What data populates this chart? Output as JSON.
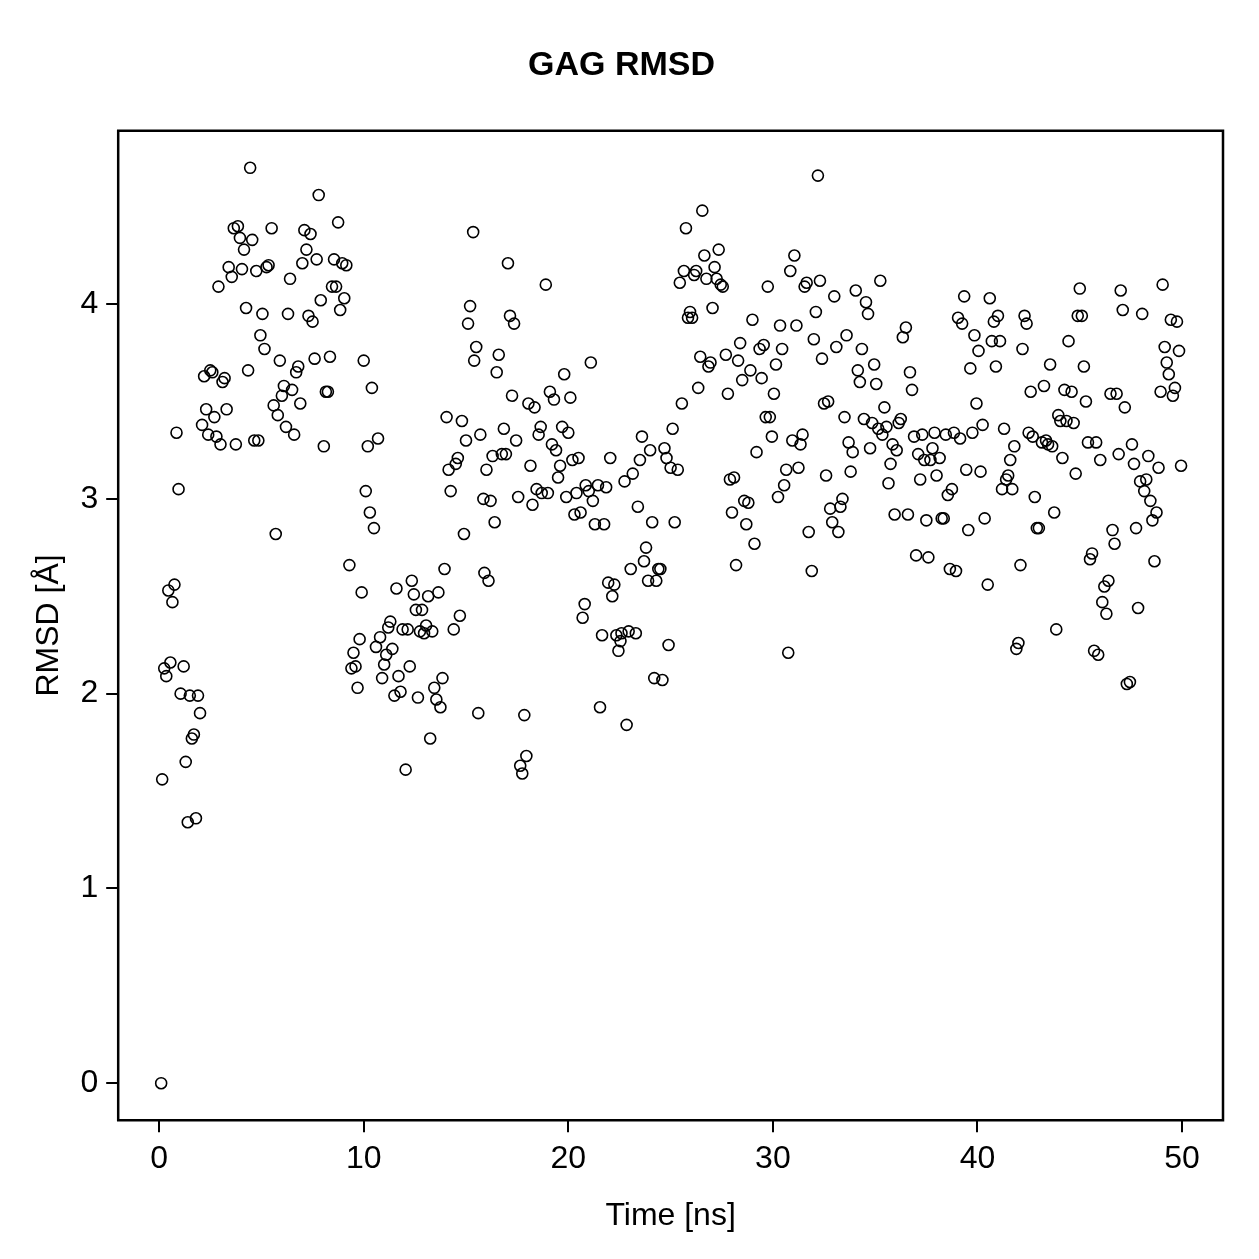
{
  "chart_data": {
    "type": "scatter",
    "title": "GAG RMSD",
    "xlabel": "Time [ns]",
    "ylabel": "RMSD [Å]",
    "marker": "circle",
    "grid": false,
    "legend": false,
    "xlim": [
      -2,
      52
    ],
    "xticks": [
      0,
      10,
      20,
      30,
      40,
      50
    ],
    "ylim": [
      -0.19,
      4.89
    ],
    "yticks": [
      0,
      1,
      2,
      3,
      4
    ],
    "series": [
      {
        "color": "#000000",
        "x": [
          0.1,
          0.15,
          0.25,
          0.35,
          0.45,
          0.55,
          0.65,
          0.75,
          0.85,
          0.95,
          1.05,
          1.2,
          1.3,
          1.4,
          1.5,
          1.6,
          1.7,
          1.8,
          1.9,
          2.0,
          2.1,
          2.2,
          2.3,
          2.4,
          2.5,
          2.6,
          2.7,
          2.8,
          2.9,
          3.0,
          3.1,
          3.2,
          3.3,
          3.4,
          3.55,
          3.65,
          3.75,
          3.85,
          3.95,
          4.05,
          4.15,
          4.25,
          4.35,
          4.45,
          4.55,
          4.65,
          4.75,
          4.85,
          4.95,
          5.05,
          5.15,
          5.25,
          5.35,
          5.5,
          5.6,
          5.7,
          5.8,
          5.9,
          6.0,
          6.1,
          6.2,
          6.3,
          6.4,
          6.5,
          6.6,
          6.7,
          6.8,
          6.9,
          7.0,
          7.1,
          7.2,
          7.3,
          7.4,
          7.5,
          7.6,
          7.7,
          7.8,
          7.9,
          8.05,
          8.15,
          8.25,
          8.35,
          8.45,
          8.55,
          8.65,
          8.75,
          8.85,
          8.95,
          9.05,
          9.15,
          9.3,
          9.4,
          9.5,
          9.6,
          9.7,
          9.8,
          9.9,
          10.0,
          10.1,
          10.2,
          10.3,
          10.4,
          10.5,
          10.6,
          10.7,
          10.8,
          10.9,
          11.0,
          11.1,
          11.2,
          11.3,
          11.4,
          11.5,
          11.6,
          11.7,
          11.8,
          11.9,
          12.05,
          12.15,
          12.25,
          12.35,
          12.45,
          12.55,
          12.65,
          12.75,
          12.85,
          12.95,
          13.05,
          13.15,
          13.25,
          13.35,
          13.45,
          13.55,
          13.65,
          13.75,
          13.85,
          13.95,
          14.05,
          14.15,
          14.25,
          14.4,
          14.5,
          14.6,
          14.7,
          14.8,
          14.9,
          15.0,
          15.1,
          15.2,
          15.35,
          15.4,
          15.5,
          15.6,
          15.7,
          15.85,
          15.9,
          16.0,
          16.1,
          16.2,
          16.3,
          16.4,
          16.5,
          16.6,
          16.75,
          16.85,
          16.95,
          17.05,
          17.15,
          17.25,
          17.35,
          17.45,
          17.55,
          17.65,
          17.75,
          17.85,
          17.95,
          18.05,
          18.15,
          18.25,
          18.35,
          18.45,
          18.55,
          18.65,
          18.7,
          18.9,
          19.0,
          19.1,
          19.2,
          19.3,
          19.4,
          19.5,
          19.6,
          19.7,
          19.8,
          19.9,
          20.0,
          20.1,
          20.2,
          20.3,
          20.4,
          20.5,
          20.6,
          20.7,
          20.8,
          20.85,
          21.0,
          21.1,
          21.2,
          21.3,
          21.45,
          21.55,
          21.65,
          21.75,
          21.85,
          21.95,
          22.05,
          22.15,
          22.25,
          22.35,
          22.45,
          22.55,
          22.6,
          22.75,
          22.85,
          22.95,
          23.05,
          23.15,
          23.3,
          23.4,
          23.5,
          23.6,
          23.7,
          23.8,
          23.9,
          24.0,
          24.1,
          24.2,
          24.3,
          24.4,
          24.5,
          24.6,
          24.7,
          24.8,
          24.9,
          25.0,
          25.1,
          25.2,
          25.35,
          25.45,
          25.55,
          25.65,
          25.75,
          25.85,
          25.95,
          26.05,
          26.15,
          26.25,
          26.35,
          26.45,
          26.55,
          26.65,
          26.75,
          26.85,
          26.95,
          27.05,
          27.15,
          27.25,
          27.35,
          27.45,
          27.55,
          27.7,
          27.8,
          27.9,
          28.0,
          28.1,
          28.2,
          28.3,
          28.4,
          28.5,
          28.6,
          28.7,
          28.8,
          28.9,
          29.0,
          29.1,
          29.2,
          29.35,
          29.45,
          29.55,
          29.65,
          29.75,
          29.85,
          29.95,
          30.05,
          30.15,
          30.25,
          30.35,
          30.45,
          30.55,
          30.65,
          30.75,
          30.85,
          30.95,
          31.05,
          31.15,
          31.25,
          31.35,
          31.45,
          31.55,
          31.65,
          31.75,
          31.9,
          32.0,
          32.1,
          32.2,
          32.3,
          32.4,
          32.5,
          32.6,
          32.7,
          32.8,
          32.9,
          33.0,
          33.1,
          33.2,
          33.3,
          33.4,
          33.5,
          33.6,
          33.7,
          33.8,
          33.9,
          34.05,
          34.15,
          34.25,
          34.35,
          34.45,
          34.55,
          34.65,
          34.75,
          34.85,
          34.95,
          35.05,
          35.15,
          35.25,
          35.35,
          35.45,
          35.55,
          35.65,
          35.75,
          35.85,
          35.95,
          36.05,
          36.15,
          36.25,
          36.35,
          36.5,
          36.6,
          36.7,
          36.8,
          36.9,
          37.0,
          37.1,
          37.2,
          37.3,
          37.4,
          37.5,
          37.6,
          37.7,
          37.8,
          37.9,
          38.0,
          38.15,
          38.25,
          38.35,
          38.45,
          38.55,
          38.65,
          38.75,
          38.85,
          38.95,
          39.05,
          39.15,
          39.25,
          39.35,
          39.45,
          39.55,
          39.65,
          39.75,
          39.85,
          39.95,
          40.05,
          40.15,
          40.25,
          40.35,
          40.5,
          40.6,
          40.7,
          40.8,
          40.9,
          41.0,
          41.1,
          41.2,
          41.3,
          41.4,
          41.5,
          41.6,
          41.7,
          41.8,
          41.9,
          42.0,
          42.1,
          42.2,
          42.3,
          42.4,
          42.5,
          42.6,
          42.7,
          42.8,
          42.9,
          43.0,
          43.15,
          43.25,
          43.35,
          43.45,
          43.55,
          43.65,
          43.75,
          43.85,
          43.95,
          44.05,
          44.15,
          44.25,
          44.35,
          44.45,
          44.6,
          44.7,
          44.8,
          44.9,
          45.0,
          45.1,
          45.2,
          45.3,
          45.4,
          45.5,
          45.6,
          45.7,
          45.8,
          45.9,
          46.0,
          46.1,
          46.2,
          46.3,
          46.4,
          46.5,
          46.6,
          46.7,
          46.8,
          46.9,
          47.0,
          47.1,
          47.2,
          47.3,
          47.45,
          47.55,
          47.65,
          47.75,
          47.85,
          47.95,
          48.05,
          48.15,
          48.25,
          48.35,
          48.45,
          48.55,
          48.65,
          48.75,
          48.85,
          48.95,
          49.05,
          49.15,
          49.25,
          49.35,
          49.45,
          49.55,
          49.65,
          49.75,
          49.85,
          49.95
        ],
        "values": [
          0.0,
          1.56,
          2.13,
          2.09,
          2.53,
          2.16,
          2.47,
          2.56,
          3.34,
          3.05,
          2.0,
          2.14,
          1.65,
          1.34,
          1.99,
          1.77,
          1.79,
          1.36,
          1.99,
          1.9,
          3.38,
          3.63,
          3.46,
          3.33,
          3.66,
          3.65,
          3.42,
          3.32,
          4.09,
          3.28,
          3.6,
          3.62,
          3.46,
          4.19,
          4.14,
          4.39,
          3.28,
          4.4,
          4.34,
          4.18,
          4.28,
          3.98,
          3.66,
          4.7,
          4.33,
          3.3,
          4.17,
          3.3,
          3.84,
          3.95,
          3.77,
          4.19,
          4.2,
          4.39,
          3.48,
          2.82,
          3.43,
          3.71,
          3.53,
          3.58,
          3.37,
          3.95,
          4.13,
          3.56,
          3.33,
          3.65,
          3.68,
          3.49,
          4.21,
          4.38,
          4.28,
          3.94,
          4.36,
          3.91,
          3.72,
          4.23,
          4.56,
          4.02,
          3.27,
          3.55,
          3.55,
          3.73,
          4.09,
          4.23,
          4.09,
          4.42,
          3.97,
          4.21,
          4.03,
          4.2,
          2.66,
          2.13,
          2.21,
          2.14,
          2.03,
          2.28,
          2.52,
          3.71,
          3.04,
          3.27,
          2.93,
          3.57,
          2.85,
          2.24,
          3.31,
          2.29,
          2.08,
          2.15,
          2.2,
          2.34,
          2.37,
          2.23,
          1.99,
          2.54,
          2.09,
          2.01,
          2.33,
          1.61,
          2.33,
          2.14,
          2.58,
          2.51,
          2.43,
          1.98,
          2.32,
          2.43,
          2.31,
          2.35,
          2.5,
          1.77,
          2.32,
          2.03,
          1.97,
          2.52,
          1.93,
          2.08,
          2.64,
          3.42,
          3.15,
          3.04,
          2.33,
          3.18,
          3.21,
          2.4,
          3.4,
          2.82,
          3.3,
          3.9,
          3.99,
          4.37,
          3.71,
          3.78,
          1.9,
          3.33,
          3.0,
          2.62,
          3.15,
          2.58,
          2.99,
          3.22,
          2.88,
          3.65,
          3.74,
          3.23,
          3.36,
          3.23,
          4.21,
          3.94,
          3.53,
          3.9,
          3.3,
          3.01,
          1.63,
          1.59,
          1.89,
          1.68,
          3.49,
          3.17,
          2.97,
          3.47,
          3.05,
          3.33,
          3.37,
          3.03,
          4.1,
          3.03,
          3.55,
          3.28,
          3.51,
          3.25,
          3.11,
          3.17,
          3.37,
          3.64,
          3.01,
          3.34,
          3.52,
          3.2,
          2.92,
          3.03,
          3.21,
          2.93,
          2.39,
          2.46,
          3.07,
          3.04,
          3.7,
          2.99,
          2.87,
          3.07,
          1.93,
          2.3,
          2.87,
          3.06,
          2.57,
          3.21,
          2.5,
          2.56,
          2.3,
          2.22,
          2.27,
          2.31,
          3.09,
          1.84,
          2.32,
          2.64,
          3.13,
          2.31,
          2.96,
          3.2,
          3.32,
          2.68,
          2.75,
          2.58,
          3.25,
          2.88,
          2.08,
          2.58,
          2.64,
          2.64,
          2.07,
          3.26,
          3.21,
          2.25,
          3.16,
          3.36,
          2.88,
          3.15,
          4.11,
          3.49,
          4.17,
          4.39,
          3.93,
          3.96,
          3.93,
          4.15,
          4.17,
          3.57,
          3.73,
          4.48,
          4.25,
          4.13,
          3.68,
          3.7,
          3.98,
          4.19,
          4.13,
          4.28,
          4.1,
          4.09,
          3.74,
          3.54,
          3.1,
          2.93,
          3.11,
          2.66,
          3.71,
          3.8,
          3.61,
          2.99,
          2.87,
          2.98,
          3.66,
          3.92,
          2.77,
          3.24,
          3.77,
          3.62,
          3.79,
          3.42,
          4.09,
          3.42,
          3.32,
          3.54,
          3.69,
          3.01,
          3.89,
          3.77,
          3.07,
          3.15,
          2.21,
          4.17,
          3.3,
          4.25,
          3.89,
          3.16,
          3.28,
          3.33,
          4.09,
          4.11,
          2.83,
          2.63,
          3.82,
          3.96,
          4.66,
          4.12,
          3.72,
          3.49,
          3.12,
          3.5,
          2.95,
          2.88,
          4.04,
          3.78,
          2.83,
          2.96,
          3.0,
          3.42,
          3.84,
          3.29,
          3.14,
          3.24,
          4.07,
          3.66,
          3.6,
          3.77,
          3.41,
          4.01,
          3.95,
          3.26,
          3.39,
          3.69,
          3.59,
          3.36,
          4.12,
          3.33,
          3.47,
          3.37,
          3.08,
          3.18,
          3.28,
          2.92,
          3.25,
          3.39,
          3.41,
          3.83,
          3.88,
          2.92,
          3.65,
          3.56,
          3.32,
          2.71,
          3.23,
          3.1,
          3.33,
          3.2,
          2.89,
          2.7,
          3.2,
          3.26,
          3.34,
          3.12,
          3.21,
          2.9,
          2.9,
          3.33,
          3.02,
          2.64,
          3.05,
          3.34,
          2.63,
          3.93,
          3.31,
          3.9,
          4.04,
          3.15,
          2.84,
          3.67,
          3.34,
          3.84,
          3.49,
          3.76,
          3.14,
          3.38,
          2.9,
          2.56,
          4.03,
          3.81,
          3.91,
          3.68,
          3.94,
          3.81,
          3.05,
          3.36,
          3.1,
          3.12,
          3.2,
          3.05,
          3.27,
          2.23,
          2.26,
          2.66,
          3.77,
          3.94,
          3.9,
          3.34,
          3.55,
          3.32,
          3.01,
          2.85,
          2.85,
          3.29,
          3.58,
          3.3,
          3.28,
          3.69,
          3.27,
          2.93,
          2.33,
          3.43,
          3.4,
          3.21,
          3.56,
          3.4,
          3.81,
          3.55,
          3.39,
          3.13,
          3.94,
          4.08,
          3.94,
          3.68,
          3.5,
          3.29,
          2.69,
          2.72,
          2.22,
          3.29,
          2.2,
          3.2,
          2.47,
          2.55,
          2.41,
          2.58,
          3.54,
          2.84,
          2.77,
          3.54,
          3.23,
          4.07,
          3.97,
          3.47,
          2.05,
          2.06,
          3.28,
          3.18,
          2.85,
          2.44,
          3.09,
          3.95,
          3.04,
          3.1,
          3.22,
          2.99,
          2.89,
          2.68,
          2.93,
          3.16,
          3.55,
          4.1,
          3.78,
          3.7,
          3.64,
          3.92,
          3.53,
          3.57,
          3.91,
          3.76,
          3.17
        ]
      }
    ]
  }
}
